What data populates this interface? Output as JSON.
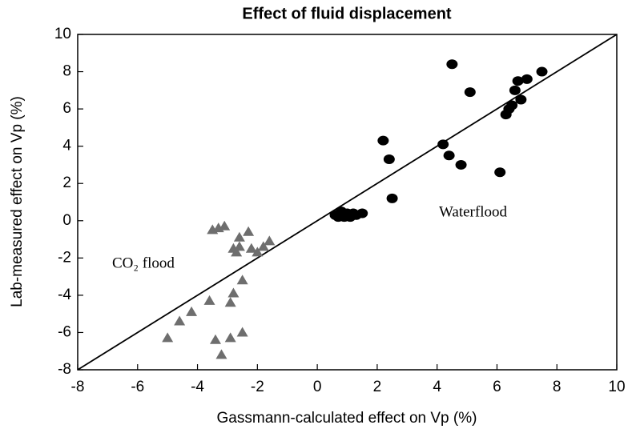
{
  "chart_data": {
    "type": "scatter",
    "title": "Effect of fluid displacement",
    "x_label": "Gassmann-calculated effect on Vp (%)",
    "y_label": "Lab-measured effect on Vp (%)",
    "annotations": [
      "Waterflood",
      "CO₂ flood"
    ],
    "xlim": [
      -8,
      10
    ],
    "ylim": [
      -8,
      10
    ],
    "xticks": [
      -8,
      -6,
      -4,
      -2,
      0,
      2,
      4,
      6,
      8,
      10
    ],
    "yticks": [
      -8,
      -6,
      -4,
      -2,
      0,
      2,
      4,
      6,
      8,
      10
    ],
    "series": [
      {
        "name": "Waterflood",
        "color": "#000000",
        "marker": "circle",
        "x": [
          4.5,
          5.1,
          6.7,
          7.0,
          7.5,
          6.6,
          6.8,
          6.5,
          6.4,
          6.3,
          4.2,
          4.4,
          4.8,
          6.1,
          2.2,
          2.4,
          2.5,
          0.6,
          0.8,
          0.9,
          1.0,
          1.1,
          1.2,
          1.3,
          1.5,
          0.7
        ],
        "y": [
          8.4,
          6.9,
          7.5,
          7.6,
          8.0,
          7.0,
          6.5,
          6.2,
          6.0,
          5.7,
          4.1,
          3.5,
          3.0,
          2.6,
          4.3,
          3.3,
          1.2,
          0.3,
          0.5,
          0.2,
          0.4,
          0.2,
          0.4,
          0.3,
          0.4,
          0.2
        ]
      },
      {
        "name": "CO₂ flood",
        "color": "#6e6e6e",
        "marker": "triangle",
        "x": [
          -3.5,
          -3.3,
          -3.1,
          -2.6,
          -2.3,
          -2.8,
          -2.7,
          -2.6,
          -2.2,
          -2.0,
          -1.8,
          -1.6,
          -2.5,
          -2.8,
          -2.9,
          -3.6,
          -4.2,
          -4.6,
          -5.0,
          -3.4,
          -3.2,
          -2.9,
          -2.5
        ],
        "y": [
          -0.5,
          -0.4,
          -0.3,
          -0.9,
          -0.6,
          -1.5,
          -1.7,
          -1.4,
          -1.5,
          -1.7,
          -1.4,
          -1.1,
          -3.2,
          -3.9,
          -4.4,
          -4.3,
          -4.9,
          -5.4,
          -6.3,
          -6.4,
          -7.2,
          -6.3,
          -6.0
        ]
      }
    ],
    "reference_line": {
      "x": [
        -8,
        10
      ],
      "y": [
        -8,
        10
      ]
    }
  }
}
